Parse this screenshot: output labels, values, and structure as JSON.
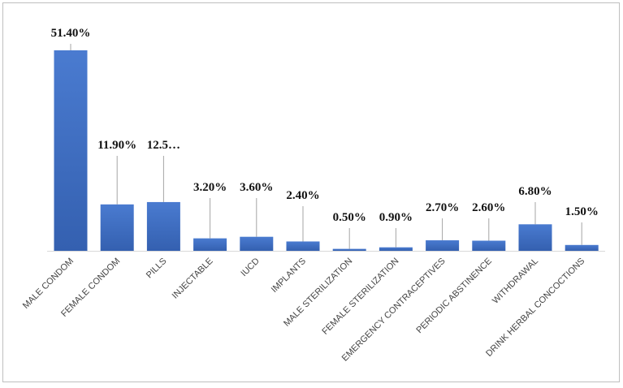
{
  "chart_data": {
    "type": "bar",
    "categories": [
      "MALE CONDOM",
      "FEMALE CONDOM",
      "PILLS",
      "INJECTABLE",
      "IUCD",
      "IMPLANTS",
      "MALE STERILIZATION",
      "FEMALE STERILIZATION",
      "EMERGENCY CONTRACEPTIVES",
      "PERIODIC ABSTINENCE",
      "WITHDRAWAL",
      "DRINK HERBAL CONCOCTIONS"
    ],
    "values": [
      51.4,
      11.9,
      12.5,
      3.2,
      3.6,
      2.4,
      0.5,
      0.9,
      2.7,
      2.6,
      6.8,
      1.5
    ],
    "value_labels": [
      "51.40%",
      "11.90%",
      "12.5…",
      "3.20%",
      "3.60%",
      "2.40%",
      "0.50%",
      "0.90%",
      "2.70%",
      "2.60%",
      "6.80%",
      "1.50%"
    ],
    "color": "#4472c4"
  }
}
